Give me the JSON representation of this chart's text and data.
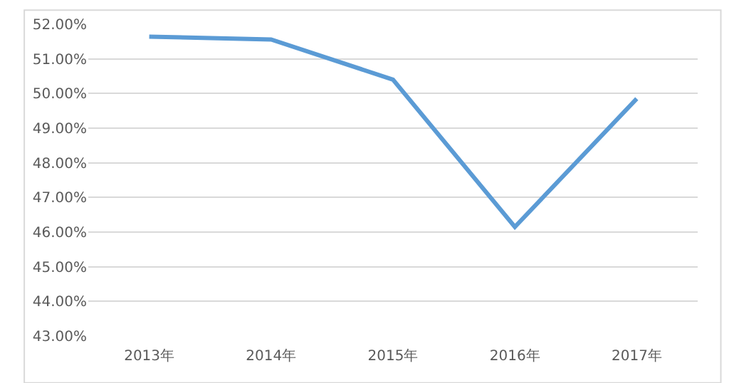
{
  "chart_data": {
    "type": "line",
    "categories": [
      "2013年",
      "2014年",
      "2015年",
      "2016年",
      "2017年"
    ],
    "series": [
      {
        "color": "#5b9bd5",
        "values": [
          51.64,
          51.56,
          50.4,
          46.15,
          49.85
        ]
      }
    ],
    "ylim": [
      43,
      52
    ],
    "yticks": [
      {
        "value": 43,
        "label": "43.00%"
      },
      {
        "value": 44,
        "label": "44.00%"
      },
      {
        "value": 45,
        "label": "45.00%"
      },
      {
        "value": 46,
        "label": "46.00%"
      },
      {
        "value": 47,
        "label": "47.00%"
      },
      {
        "value": 48,
        "label": "48.00%"
      },
      {
        "value": 49,
        "label": "49.00%"
      },
      {
        "value": 50,
        "label": "50.00%"
      },
      {
        "value": 51,
        "label": "51.00%"
      },
      {
        "value": 52,
        "label": "52.00%"
      }
    ],
    "grid": "y",
    "marker": "none",
    "line_style": "solid"
  }
}
